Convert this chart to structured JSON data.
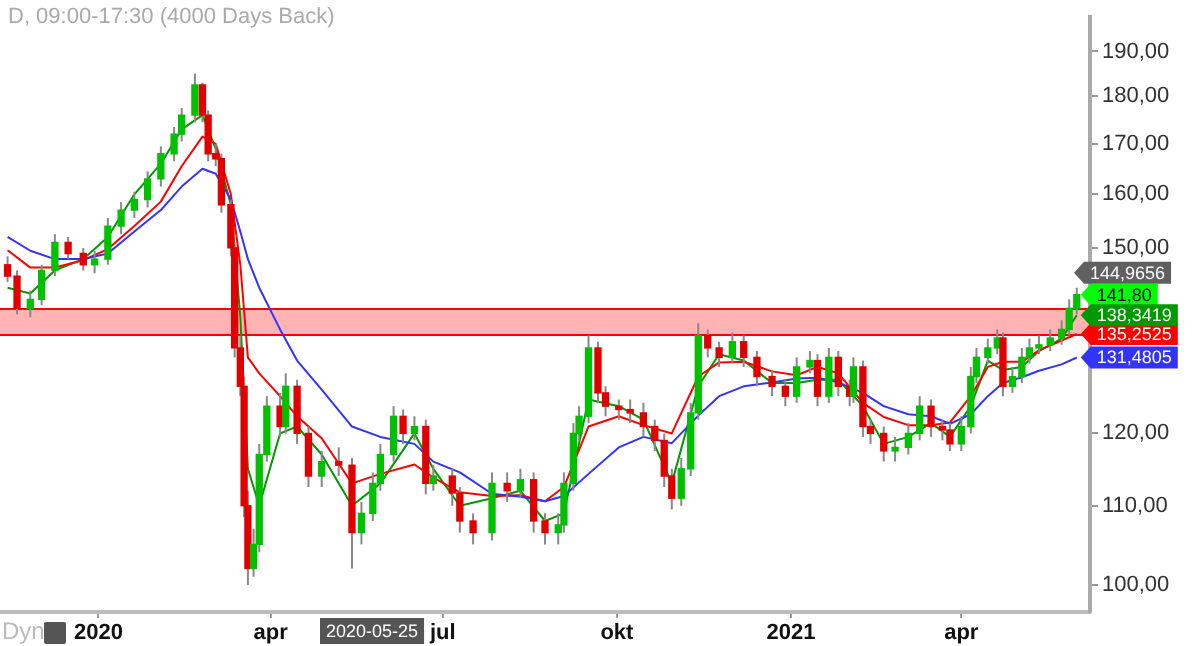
{
  "chart_data": {
    "type": "candlestick",
    "title": "D, 09:00-17:30 (4000 Days Back)",
    "log": "y",
    "grid": false,
    "legend": false,
    "xlim": [
      "2019-11-10",
      "2021-06-08"
    ],
    "ylim": [
      96.8,
      198
    ],
    "xticks": [
      {
        "value": "2020-01-01",
        "label": "2020"
      },
      {
        "value": "2020-04-01",
        "label": "apr"
      },
      {
        "value": "2020-07-01",
        "label": "jul"
      },
      {
        "value": "2020-10-01",
        "label": "okt"
      },
      {
        "value": "2021-01-01",
        "label": "2021"
      },
      {
        "value": "2021-04-01",
        "label": "apr"
      }
    ],
    "yticks": [
      {
        "value": 100,
        "label": "100,00"
      },
      {
        "value": 110,
        "label": "110,00"
      },
      {
        "value": 120,
        "label": "120,00"
      },
      {
        "value": 150,
        "label": "150,00"
      },
      {
        "value": 160,
        "label": "160,00"
      },
      {
        "value": 170,
        "label": "170,00"
      },
      {
        "value": 180,
        "label": "180,00"
      },
      {
        "value": 190,
        "label": "190,00"
      }
    ],
    "x": [
      "2019-11-14",
      "2019-11-19",
      "2019-11-26",
      "2019-12-02",
      "2019-12-09",
      "2019-12-16",
      "2019-12-24",
      "2019-12-30",
      "2020-01-06",
      "2020-01-13",
      "2020-01-20",
      "2020-01-27",
      "2020-02-03",
      "2020-02-10",
      "2020-02-14",
      "2020-02-21",
      "2020-02-25",
      "2020-02-28",
      "2020-03-03",
      "2020-03-06",
      "2020-03-11",
      "2020-03-13",
      "2020-03-16",
      "2020-03-18",
      "2020-03-20",
      "2020-03-23",
      "2020-03-26",
      "2020-03-30",
      "2020-04-06",
      "2020-04-09",
      "2020-04-15",
      "2020-04-21",
      "2020-04-28",
      "2020-05-07",
      "2020-05-14",
      "2020-05-19",
      "2020-05-25",
      "2020-05-29",
      "2020-06-05",
      "2020-06-10",
      "2020-06-16",
      "2020-06-22",
      "2020-06-26",
      "2020-07-06",
      "2020-07-10",
      "2020-07-17",
      "2020-07-27",
      "2020-08-04",
      "2020-08-11",
      "2020-08-18",
      "2020-08-24",
      "2020-08-31",
      "2020-09-03",
      "2020-09-08",
      "2020-09-11",
      "2020-09-16",
      "2020-09-21",
      "2020-09-25",
      "2020-10-02",
      "2020-10-08",
      "2020-10-15",
      "2020-10-21",
      "2020-10-26",
      "2020-10-30",
      "2020-11-04",
      "2020-11-09",
      "2020-11-13",
      "2020-11-18",
      "2020-11-24",
      "2020-12-01",
      "2020-12-07",
      "2020-12-14",
      "2020-12-22",
      "2020-12-29",
      "2021-01-04",
      "2021-01-11",
      "2021-01-15",
      "2021-01-21",
      "2021-01-26",
      "2021-02-01",
      "2021-02-03",
      "2021-02-08",
      "2021-02-12",
      "2021-02-19",
      "2021-02-25",
      "2021-03-04",
      "2021-03-10",
      "2021-03-16",
      "2021-03-22",
      "2021-03-26",
      "2021-04-01",
      "2021-04-06",
      "2021-04-09",
      "2021-04-15",
      "2021-04-20",
      "2021-04-23",
      "2021-04-28",
      "2021-05-03",
      "2021-05-07",
      "2021-05-12",
      "2021-05-18",
      "2021-05-24",
      "2021-05-28",
      "2021-06-01"
    ],
    "ohlc": [
      [
        147,
        148.5,
        144,
        145
      ],
      [
        145,
        146,
        138.5,
        139.5
      ],
      [
        139.5,
        142.5,
        138,
        141
      ],
      [
        141,
        147,
        140,
        146
      ],
      [
        146,
        152.5,
        145,
        151
      ],
      [
        151,
        152,
        148,
        149
      ],
      [
        149,
        150,
        146,
        147
      ],
      [
        147,
        149.5,
        145.5,
        148
      ],
      [
        148,
        155.5,
        147,
        154
      ],
      [
        154,
        158.5,
        152.5,
        157
      ],
      [
        157,
        160.5,
        155.5,
        159
      ],
      [
        159,
        164.5,
        157.5,
        163
      ],
      [
        163,
        169.5,
        161.5,
        168
      ],
      [
        168,
        173.5,
        166.5,
        172
      ],
      [
        172,
        177.5,
        170.5,
        176
      ],
      [
        176,
        185,
        174.5,
        182.5
      ],
      [
        182.5,
        183,
        174.5,
        176
      ],
      [
        176,
        177,
        166.5,
        168
      ],
      [
        168,
        170,
        165.5,
        167
      ],
      [
        167,
        168,
        156.5,
        158
      ],
      [
        158,
        159,
        148.5,
        150
      ],
      [
        150,
        151,
        131.5,
        133
      ],
      [
        133,
        135,
        125.5,
        127
      ],
      [
        127,
        128.5,
        108.5,
        110
      ],
      [
        110,
        112,
        100,
        102
      ],
      [
        102,
        107,
        101,
        105
      ],
      [
        105,
        118.5,
        104,
        117
      ],
      [
        117,
        125.5,
        116,
        124
      ],
      [
        124,
        126,
        119.5,
        121
      ],
      [
        121,
        129,
        120,
        127
      ],
      [
        127,
        128,
        118.5,
        120
      ],
      [
        120,
        121,
        112.5,
        114
      ],
      [
        114,
        117.5,
        112.5,
        116
      ],
      [
        116,
        118,
        114,
        115.5
      ],
      [
        115.5,
        116.5,
        102,
        106.5
      ],
      [
        106.5,
        110.5,
        105,
        109
      ],
      [
        109,
        114.5,
        108,
        113
      ],
      [
        113,
        118.5,
        112,
        117
      ],
      [
        117,
        124,
        116,
        122.5
      ],
      [
        122.5,
        123.5,
        118.5,
        120
      ],
      [
        120,
        122.5,
        119,
        121
      ],
      [
        121,
        122,
        111.5,
        113
      ],
      [
        113,
        115.5,
        112,
        114
      ],
      [
        114,
        115,
        110,
        111.7
      ],
      [
        111.7,
        112.5,
        106.5,
        108
      ],
      [
        108,
        109,
        105,
        106.5
      ],
      [
        106.5,
        114.5,
        105.5,
        113
      ],
      [
        113,
        114.5,
        110.5,
        112
      ],
      [
        112,
        115,
        111,
        113.5
      ],
      [
        113.5,
        114.5,
        106.5,
        108
      ],
      [
        108,
        109,
        105,
        106.5
      ],
      [
        106.5,
        109,
        105,
        107.5
      ],
      [
        107.5,
        114.5,
        106.5,
        113
      ],
      [
        113,
        121.5,
        112,
        120
      ],
      [
        120,
        124,
        119,
        122.5
      ],
      [
        122.5,
        135,
        121.5,
        133
      ],
      [
        133,
        134,
        124.5,
        126
      ],
      [
        126,
        127,
        122.5,
        124
      ],
      [
        124,
        125,
        122,
        123.5
      ],
      [
        123.5,
        125,
        121.5,
        123
      ],
      [
        123,
        124.5,
        119.5,
        121
      ],
      [
        121,
        122,
        117.5,
        119
      ],
      [
        119,
        120,
        112.5,
        114
      ],
      [
        114,
        115,
        109.5,
        111
      ],
      [
        111,
        116.5,
        110,
        115
      ],
      [
        115,
        124.5,
        114,
        123
      ],
      [
        123,
        137,
        122,
        135
      ],
      [
        135,
        136,
        131.5,
        133
      ],
      [
        133,
        134,
        130,
        131.5
      ],
      [
        131.5,
        135.5,
        130.5,
        134
      ],
      [
        134,
        135,
        130,
        131.5
      ],
      [
        131.5,
        132.5,
        127,
        128.5
      ],
      [
        128.5,
        129.5,
        125.5,
        127
      ],
      [
        127,
        128,
        124,
        125.5
      ],
      [
        125.5,
        131.5,
        124.5,
        130
      ],
      [
        130,
        132.5,
        129,
        131
      ],
      [
        131,
        132,
        124,
        125.5
      ],
      [
        125.5,
        133,
        124.5,
        131.5
      ],
      [
        131.5,
        132.5,
        125.5,
        127
      ],
      [
        127,
        128,
        124,
        125.5
      ],
      [
        125.5,
        131.5,
        124.5,
        130
      ],
      [
        130,
        131,
        119.5,
        121
      ],
      [
        121,
        122,
        118.5,
        120
      ],
      [
        120,
        121,
        116,
        117.5
      ],
      [
        117.5,
        119.5,
        116,
        118
      ],
      [
        118,
        121.5,
        117,
        120
      ],
      [
        120,
        125.5,
        119,
        124
      ],
      [
        124,
        125,
        119.5,
        121
      ],
      [
        121,
        122,
        119,
        120.5
      ],
      [
        120.5,
        121.5,
        117.5,
        118.5
      ],
      [
        118.5,
        122.5,
        117.5,
        121
      ],
      [
        121,
        130,
        120,
        128.5
      ],
      [
        128.5,
        133,
        127.5,
        131.5
      ],
      [
        131.5,
        134.5,
        130.5,
        133
      ],
      [
        133,
        136,
        132,
        134.6
      ],
      [
        134.6,
        135.5,
        125.5,
        127
      ],
      [
        127,
        130,
        126,
        128.5
      ],
      [
        128.5,
        133,
        127.5,
        131.5
      ],
      [
        131.5,
        134.5,
        130.5,
        133
      ],
      [
        133,
        135,
        132,
        133.5
      ],
      [
        133.5,
        136,
        132.5,
        134.6
      ],
      [
        134.6,
        137.5,
        133.5,
        136
      ],
      [
        136,
        141,
        135,
        139.5
      ],
      [
        139.5,
        143,
        138.5,
        141.8
      ]
    ],
    "series": [
      {
        "type": "line",
        "color": "#3333ff",
        "x": [
          "2019-11-14",
          "2019-11-26",
          "2019-12-09",
          "2019-12-24",
          "2020-01-06",
          "2020-01-20",
          "2020-02-03",
          "2020-02-14",
          "2020-02-25",
          "2020-03-03",
          "2020-03-11",
          "2020-03-16",
          "2020-03-20",
          "2020-03-26",
          "2020-04-06",
          "2020-04-15",
          "2020-04-28",
          "2020-05-14",
          "2020-05-29",
          "2020-06-16",
          "2020-06-26",
          "2020-07-10",
          "2020-07-27",
          "2020-08-11",
          "2020-08-24",
          "2020-09-03",
          "2020-09-16",
          "2020-10-02",
          "2020-10-15",
          "2020-10-30",
          "2020-11-13",
          "2020-11-24",
          "2020-12-07",
          "2020-12-22",
          "2021-01-04",
          "2021-01-15",
          "2021-01-26",
          "2021-02-08",
          "2021-02-19",
          "2021-03-04",
          "2021-03-16",
          "2021-03-26",
          "2021-04-06",
          "2021-04-15",
          "2021-04-23",
          "2021-05-03",
          "2021-05-12",
          "2021-05-24",
          "2021-06-01"
        ],
        "values": [
          152,
          149.5,
          148,
          148,
          149,
          153,
          157,
          161.5,
          165,
          164,
          159,
          153,
          148,
          143,
          136,
          131,
          126.5,
          121,
          119.5,
          118.5,
          116,
          114.5,
          111.6,
          111.2,
          110.6,
          111.3,
          114.3,
          118,
          119.5,
          118.6,
          122.6,
          125.5,
          127,
          127.6,
          128.2,
          128.3,
          127.6,
          126,
          124,
          122.8,
          122.5,
          121.4,
          122.8,
          125.5,
          127.5,
          128.4,
          129.4,
          130.4,
          131.4805
        ],
        "value_labels": [
          null,
          null,
          null,
          null,
          null,
          null,
          null,
          null,
          null,
          null,
          null,
          null,
          null,
          null,
          null,
          null,
          null,
          null,
          null,
          null,
          null,
          null,
          null,
          null,
          null,
          null,
          null,
          null,
          null,
          null,
          null,
          null,
          null,
          null,
          null,
          null,
          null,
          null,
          null,
          null,
          null,
          null,
          null,
          null,
          null,
          null,
          null,
          null,
          "131,4805"
        ]
      },
      {
        "type": "line",
        "color": "#ff0000",
        "x": [
          "2019-11-14",
          "2019-11-26",
          "2019-12-09",
          "2019-12-24",
          "2020-01-06",
          "2020-01-20",
          "2020-02-03",
          "2020-02-14",
          "2020-02-25",
          "2020-03-03",
          "2020-03-11",
          "2020-03-16",
          "2020-03-20",
          "2020-03-26",
          "2020-04-06",
          "2020-04-15",
          "2020-04-28",
          "2020-05-14",
          "2020-05-29",
          "2020-06-16",
          "2020-06-26",
          "2020-07-10",
          "2020-07-27",
          "2020-08-11",
          "2020-08-24",
          "2020-09-03",
          "2020-09-16",
          "2020-10-02",
          "2020-10-15",
          "2020-10-30",
          "2020-11-13",
          "2020-11-24",
          "2020-12-07",
          "2020-12-22",
          "2021-01-04",
          "2021-01-15",
          "2021-01-26",
          "2021-02-08",
          "2021-02-19",
          "2021-03-04",
          "2021-03-16",
          "2021-03-26",
          "2021-04-06",
          "2021-04-15",
          "2021-04-23",
          "2021-05-03",
          "2021-05-12",
          "2021-05-24",
          "2021-06-01"
        ],
        "values": [
          149.6,
          146.5,
          146.5,
          147.8,
          149.8,
          154,
          158.6,
          165.5,
          171.5,
          170,
          160,
          147,
          131.5,
          129,
          125.5,
          122.5,
          119.3,
          113,
          114.3,
          115.6,
          113.8,
          111.8,
          111.3,
          111.4,
          110.6,
          112.5,
          121,
          122.5,
          121.2,
          120,
          128.5,
          130.7,
          130.8,
          129.3,
          128.7,
          130,
          129,
          124.5,
          122.4,
          121.2,
          121.2,
          121.6,
          125.5,
          130,
          130.8,
          130.8,
          132.6,
          134.2,
          135.2525
        ],
        "value_labels": [
          null,
          null,
          null,
          null,
          null,
          null,
          null,
          null,
          null,
          null,
          null,
          null,
          null,
          null,
          null,
          null,
          null,
          null,
          null,
          null,
          null,
          null,
          null,
          null,
          null,
          null,
          null,
          null,
          null,
          null,
          null,
          null,
          null,
          null,
          null,
          null,
          null,
          null,
          null,
          null,
          null,
          null,
          null,
          null,
          null,
          null,
          null,
          null,
          "135,2525"
        ]
      },
      {
        "type": "line",
        "color": "#009900",
        "x": [
          "2019-11-14",
          "2019-11-26",
          "2019-12-09",
          "2019-12-24",
          "2020-01-06",
          "2020-01-20",
          "2020-02-03",
          "2020-02-14",
          "2020-02-25",
          "2020-03-03",
          "2020-03-11",
          "2020-03-16",
          "2020-03-20",
          "2020-03-26",
          "2020-04-06",
          "2020-04-15",
          "2020-04-28",
          "2020-05-14",
          "2020-05-29",
          "2020-06-16",
          "2020-06-26",
          "2020-07-10",
          "2020-07-27",
          "2020-08-11",
          "2020-08-24",
          "2020-09-03",
          "2020-09-16",
          "2020-10-02",
          "2020-10-15",
          "2020-10-30",
          "2020-11-13",
          "2020-11-24",
          "2020-12-07",
          "2020-12-22",
          "2021-01-04",
          "2021-01-15",
          "2021-01-26",
          "2021-02-08",
          "2021-02-19",
          "2021-03-04",
          "2021-03-16",
          "2021-03-26",
          "2021-04-06",
          "2021-04-15",
          "2021-04-23",
          "2021-05-03",
          "2021-05-12",
          "2021-05-24",
          "2021-06-01"
        ],
        "values": [
          143,
          142,
          146,
          148,
          152,
          160,
          166,
          173,
          176,
          169,
          158,
          138,
          115,
          110,
          120,
          121,
          117,
          110,
          113,
          120,
          115,
          110,
          111,
          112,
          108,
          109,
          125,
          124,
          122,
          113,
          127,
          132,
          131,
          127.5,
          127.5,
          128,
          128,
          124,
          118.5,
          119.5,
          121.5,
          119.5,
          124,
          131,
          129.5,
          130,
          132.5,
          134.5,
          138.3419
        ],
        "value_labels": [
          null,
          null,
          null,
          null,
          null,
          null,
          null,
          null,
          null,
          null,
          null,
          null,
          null,
          null,
          null,
          null,
          null,
          null,
          null,
          null,
          null,
          null,
          null,
          null,
          null,
          null,
          null,
          null,
          null,
          null,
          null,
          null,
          null,
          null,
          null,
          null,
          null,
          null,
          null,
          null,
          null,
          null,
          null,
          null,
          null,
          null,
          null,
          null,
          "138,3419"
        ]
      }
    ],
    "bands": [
      {
        "axis": "y",
        "from": 135.25,
        "to": 139.5,
        "color": "#ffb3b3"
      }
    ],
    "ref_lines": [
      {
        "axis": "y",
        "value": 139.5,
        "color": "#ff0000"
      },
      {
        "axis": "y",
        "value": 135.25,
        "color": "#ff0000"
      }
    ],
    "annotations": [
      "144,9656",
      {
        "text": "141,80",
        "x": "2021-06-01",
        "y": 141.8
      },
      "2020-05-25",
      "Dyn"
    ]
  }
}
